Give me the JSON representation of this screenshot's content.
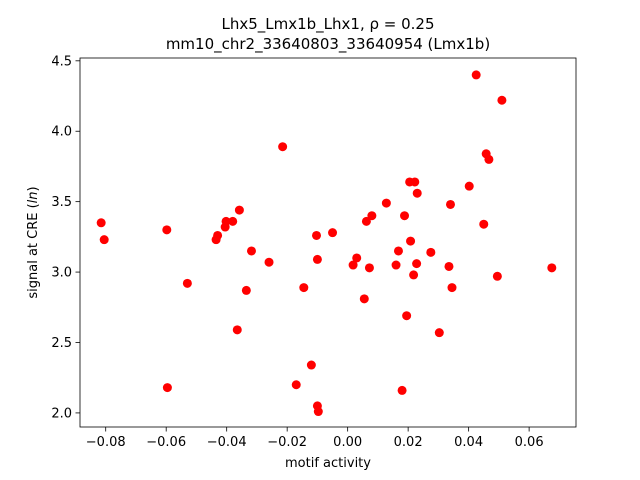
{
  "chart_data": {
    "type": "scatter",
    "title_line1": "Lhx5_Lmx1b_Lhx1, ρ = 0.25",
    "title_line2": "mm10_chr2_33640803_33640954 (Lmx1b)",
    "xlabel": "motif activity",
    "ylabel": "signal at CRE (ln)",
    "xlim": [
      -0.0885,
      0.0755
    ],
    "ylim": [
      1.9,
      4.52
    ],
    "xticks": [
      -0.08,
      -0.06,
      -0.04,
      -0.02,
      0.0,
      0.02,
      0.04,
      0.06
    ],
    "xtick_labels": [
      "−0.08",
      "−0.06",
      "−0.04",
      "−0.02",
      "0.00",
      "0.02",
      "0.04",
      "0.06"
    ],
    "yticks": [
      2.0,
      2.5,
      3.0,
      3.5,
      4.0,
      4.5
    ],
    "ytick_labels": [
      "2.0",
      "2.5",
      "3.0",
      "3.5",
      "4.0",
      "4.5"
    ],
    "grid": false,
    "marker_color": "#ff0000",
    "points": [
      {
        "x": -0.0815,
        "y": 3.35
      },
      {
        "x": -0.0805,
        "y": 3.23
      },
      {
        "x": -0.0598,
        "y": 3.3
      },
      {
        "x": -0.0596,
        "y": 2.18
      },
      {
        "x": -0.053,
        "y": 2.92
      },
      {
        "x": -0.0435,
        "y": 3.23
      },
      {
        "x": -0.043,
        "y": 3.26
      },
      {
        "x": -0.0405,
        "y": 3.32
      },
      {
        "x": -0.0402,
        "y": 3.36
      },
      {
        "x": -0.038,
        "y": 3.36
      },
      {
        "x": -0.0365,
        "y": 2.59
      },
      {
        "x": -0.0358,
        "y": 3.44
      },
      {
        "x": -0.0335,
        "y": 2.87
      },
      {
        "x": -0.0318,
        "y": 3.15
      },
      {
        "x": -0.026,
        "y": 3.07
      },
      {
        "x": -0.0215,
        "y": 3.89
      },
      {
        "x": -0.017,
        "y": 2.2
      },
      {
        "x": -0.0145,
        "y": 2.89
      },
      {
        "x": -0.012,
        "y": 2.34
      },
      {
        "x": -0.0103,
        "y": 3.26
      },
      {
        "x": -0.01,
        "y": 2.05
      },
      {
        "x": -0.01,
        "y": 3.09
      },
      {
        "x": -0.0097,
        "y": 2.01
      },
      {
        "x": -0.005,
        "y": 3.28
      },
      {
        "x": 0.0018,
        "y": 3.05
      },
      {
        "x": 0.003,
        "y": 3.1
      },
      {
        "x": 0.0055,
        "y": 2.81
      },
      {
        "x": 0.0062,
        "y": 3.36
      },
      {
        "x": 0.0072,
        "y": 3.03
      },
      {
        "x": 0.008,
        "y": 3.4
      },
      {
        "x": 0.0128,
        "y": 3.49
      },
      {
        "x": 0.016,
        "y": 3.05
      },
      {
        "x": 0.0168,
        "y": 3.15
      },
      {
        "x": 0.018,
        "y": 2.16
      },
      {
        "x": 0.0188,
        "y": 3.4
      },
      {
        "x": 0.0195,
        "y": 2.69
      },
      {
        "x": 0.0205,
        "y": 3.64
      },
      {
        "x": 0.0208,
        "y": 3.22
      },
      {
        "x": 0.0218,
        "y": 2.98
      },
      {
        "x": 0.0222,
        "y": 3.64
      },
      {
        "x": 0.0228,
        "y": 3.06
      },
      {
        "x": 0.023,
        "y": 3.56
      },
      {
        "x": 0.0275,
        "y": 3.14
      },
      {
        "x": 0.0303,
        "y": 2.57
      },
      {
        "x": 0.0335,
        "y": 3.04
      },
      {
        "x": 0.034,
        "y": 3.48
      },
      {
        "x": 0.0345,
        "y": 2.89
      },
      {
        "x": 0.0402,
        "y": 3.61
      },
      {
        "x": 0.0425,
        "y": 4.4
      },
      {
        "x": 0.045,
        "y": 3.34
      },
      {
        "x": 0.0458,
        "y": 3.84
      },
      {
        "x": 0.0467,
        "y": 3.8
      },
      {
        "x": 0.0495,
        "y": 2.97
      },
      {
        "x": 0.051,
        "y": 4.22
      },
      {
        "x": 0.0675,
        "y": 3.03
      }
    ]
  }
}
